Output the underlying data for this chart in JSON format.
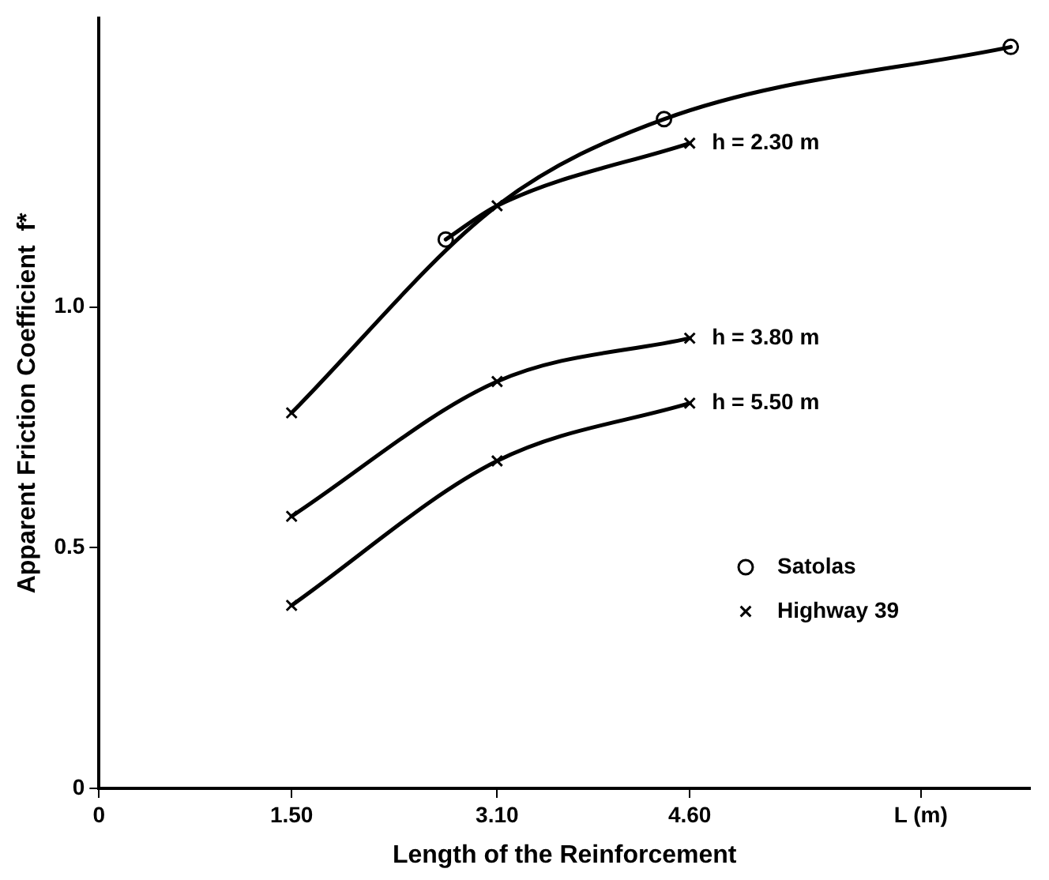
{
  "chart_data": {
    "type": "line",
    "xlabel": "Length of the Reinforcement",
    "ylabel": "Apparent Friction Coefficient  f*",
    "xlim": [
      0,
      7.25
    ],
    "ylim": [
      0,
      1.6
    ],
    "xticks": [
      0,
      {
        "value": 1.5,
        "label": "1.50"
      },
      {
        "value": 3.1,
        "label": "3.10"
      },
      {
        "value": 4.6,
        "label": "4.60"
      },
      {
        "value": 6.4,
        "label": "L (m)"
      }
    ],
    "yticks": [
      0,
      0.5,
      {
        "value": 1,
        "label": "1.0"
      }
    ],
    "grid": false,
    "legend": "bottom right",
    "line_style": "solid",
    "series": [
      {
        "type": "line",
        "color": "#000000",
        "marker": "none",
        "x": [
          1.5,
          3.1,
          4.4,
          7.1
        ],
        "values": [
          0.78,
          1.21,
          1.39,
          1.54
        ]
      },
      {
        "type": "line",
        "name": "h = 2.30 m",
        "color": "#000000",
        "marker": "none",
        "x": [
          2.7,
          3.1,
          4.6
        ],
        "values": [
          1.14,
          1.21,
          1.34
        ]
      },
      {
        "type": "line",
        "name": "h = 3.80 m",
        "color": "#000000",
        "marker": "none",
        "x": [
          1.5,
          3.1,
          4.6
        ],
        "values": [
          0.565,
          0.845,
          0.935
        ]
      },
      {
        "type": "line",
        "name": "h = 5.50 m",
        "color": "#000000",
        "marker": "none",
        "x": [
          1.5,
          3.1,
          4.6
        ],
        "values": [
          0.38,
          0.68,
          0.8
        ]
      },
      {
        "type": "scatter",
        "name": "Satolas",
        "color": "#000000",
        "marker": "circle",
        "x": [
          2.7,
          4.4,
          7.1
        ],
        "values": [
          1.14,
          1.39,
          1.54
        ]
      },
      {
        "type": "scatter",
        "name": "Highway 39",
        "color": "#000000",
        "marker": "cross",
        "x": [
          1.5,
          1.5,
          1.5,
          3.1,
          3.1,
          3.1,
          4.6,
          4.6,
          4.6
        ],
        "values": [
          0.78,
          0.565,
          0.38,
          1.21,
          0.845,
          0.68,
          1.34,
          0.935,
          0.8
        ]
      }
    ]
  }
}
